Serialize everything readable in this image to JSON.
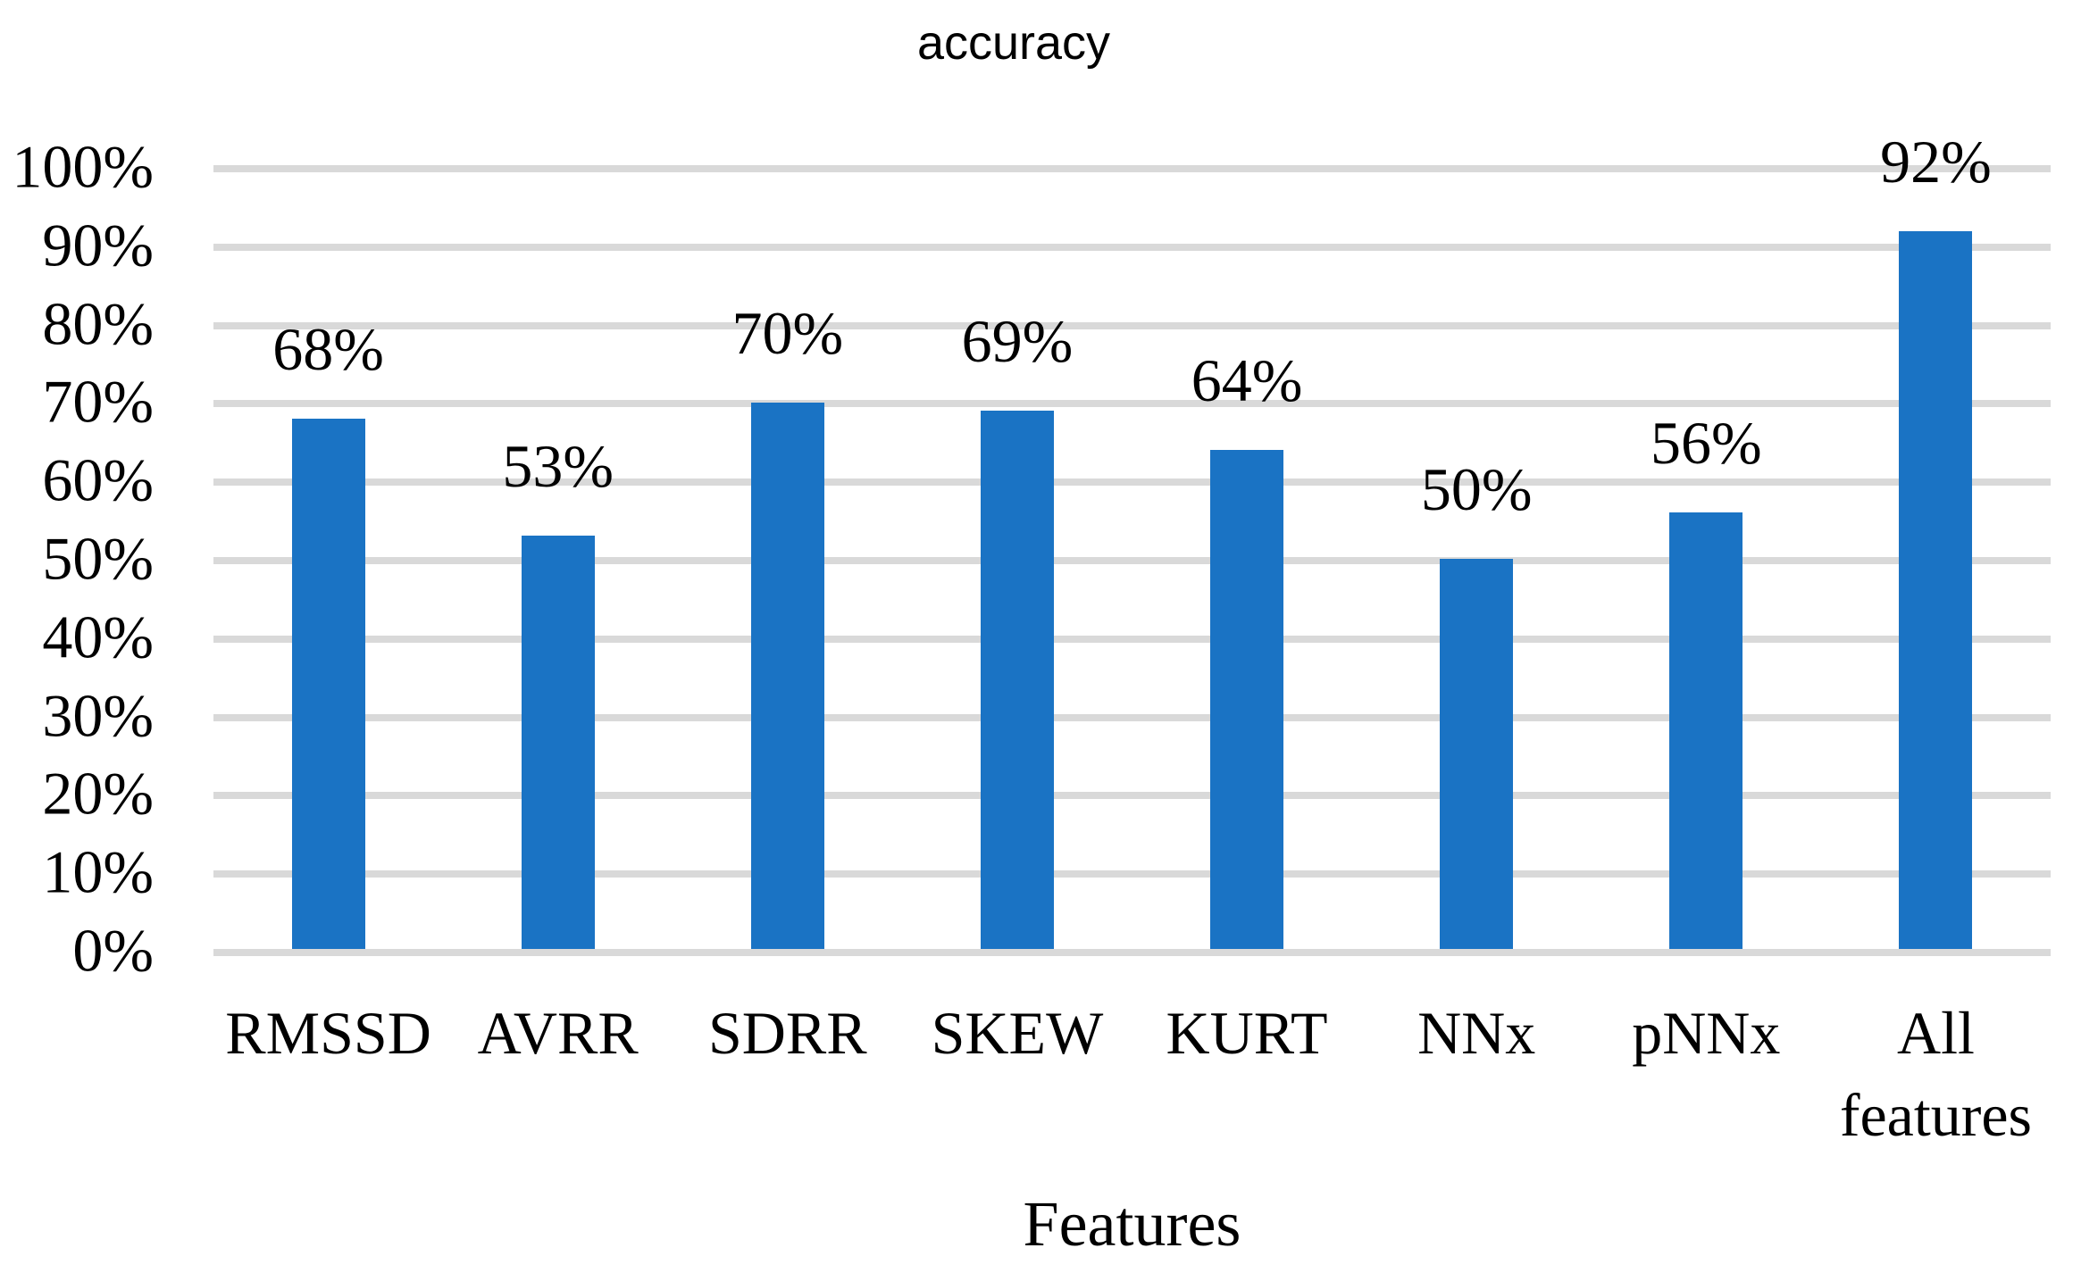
{
  "chart_data": {
    "type": "bar",
    "title": "accuracy",
    "xlabel": "Features",
    "ylabel": "",
    "categories": [
      "RMSSD",
      "AVRR",
      "SDRR",
      "SKEW",
      "KURT",
      "NNx",
      "pNNx",
      "All features"
    ],
    "values": [
      68,
      53,
      70,
      69,
      64,
      50,
      56,
      92
    ],
    "data_labels": [
      "68%",
      "53%",
      "70%",
      "69%",
      "64%",
      "50%",
      "56%",
      "92%"
    ],
    "y_ticks": [
      "100%",
      "90%",
      "80%",
      "70%",
      "60%",
      "50%",
      "40%",
      "30%",
      "20%",
      "10%",
      "0%"
    ],
    "ylim": [
      0,
      100
    ],
    "y_step": 10,
    "grid": true,
    "legend": false,
    "bar_color": "#1A73C4",
    "gridline_color": "#D9D9D9",
    "text_color": "#000000",
    "background_color": "#FFFFFF"
  }
}
